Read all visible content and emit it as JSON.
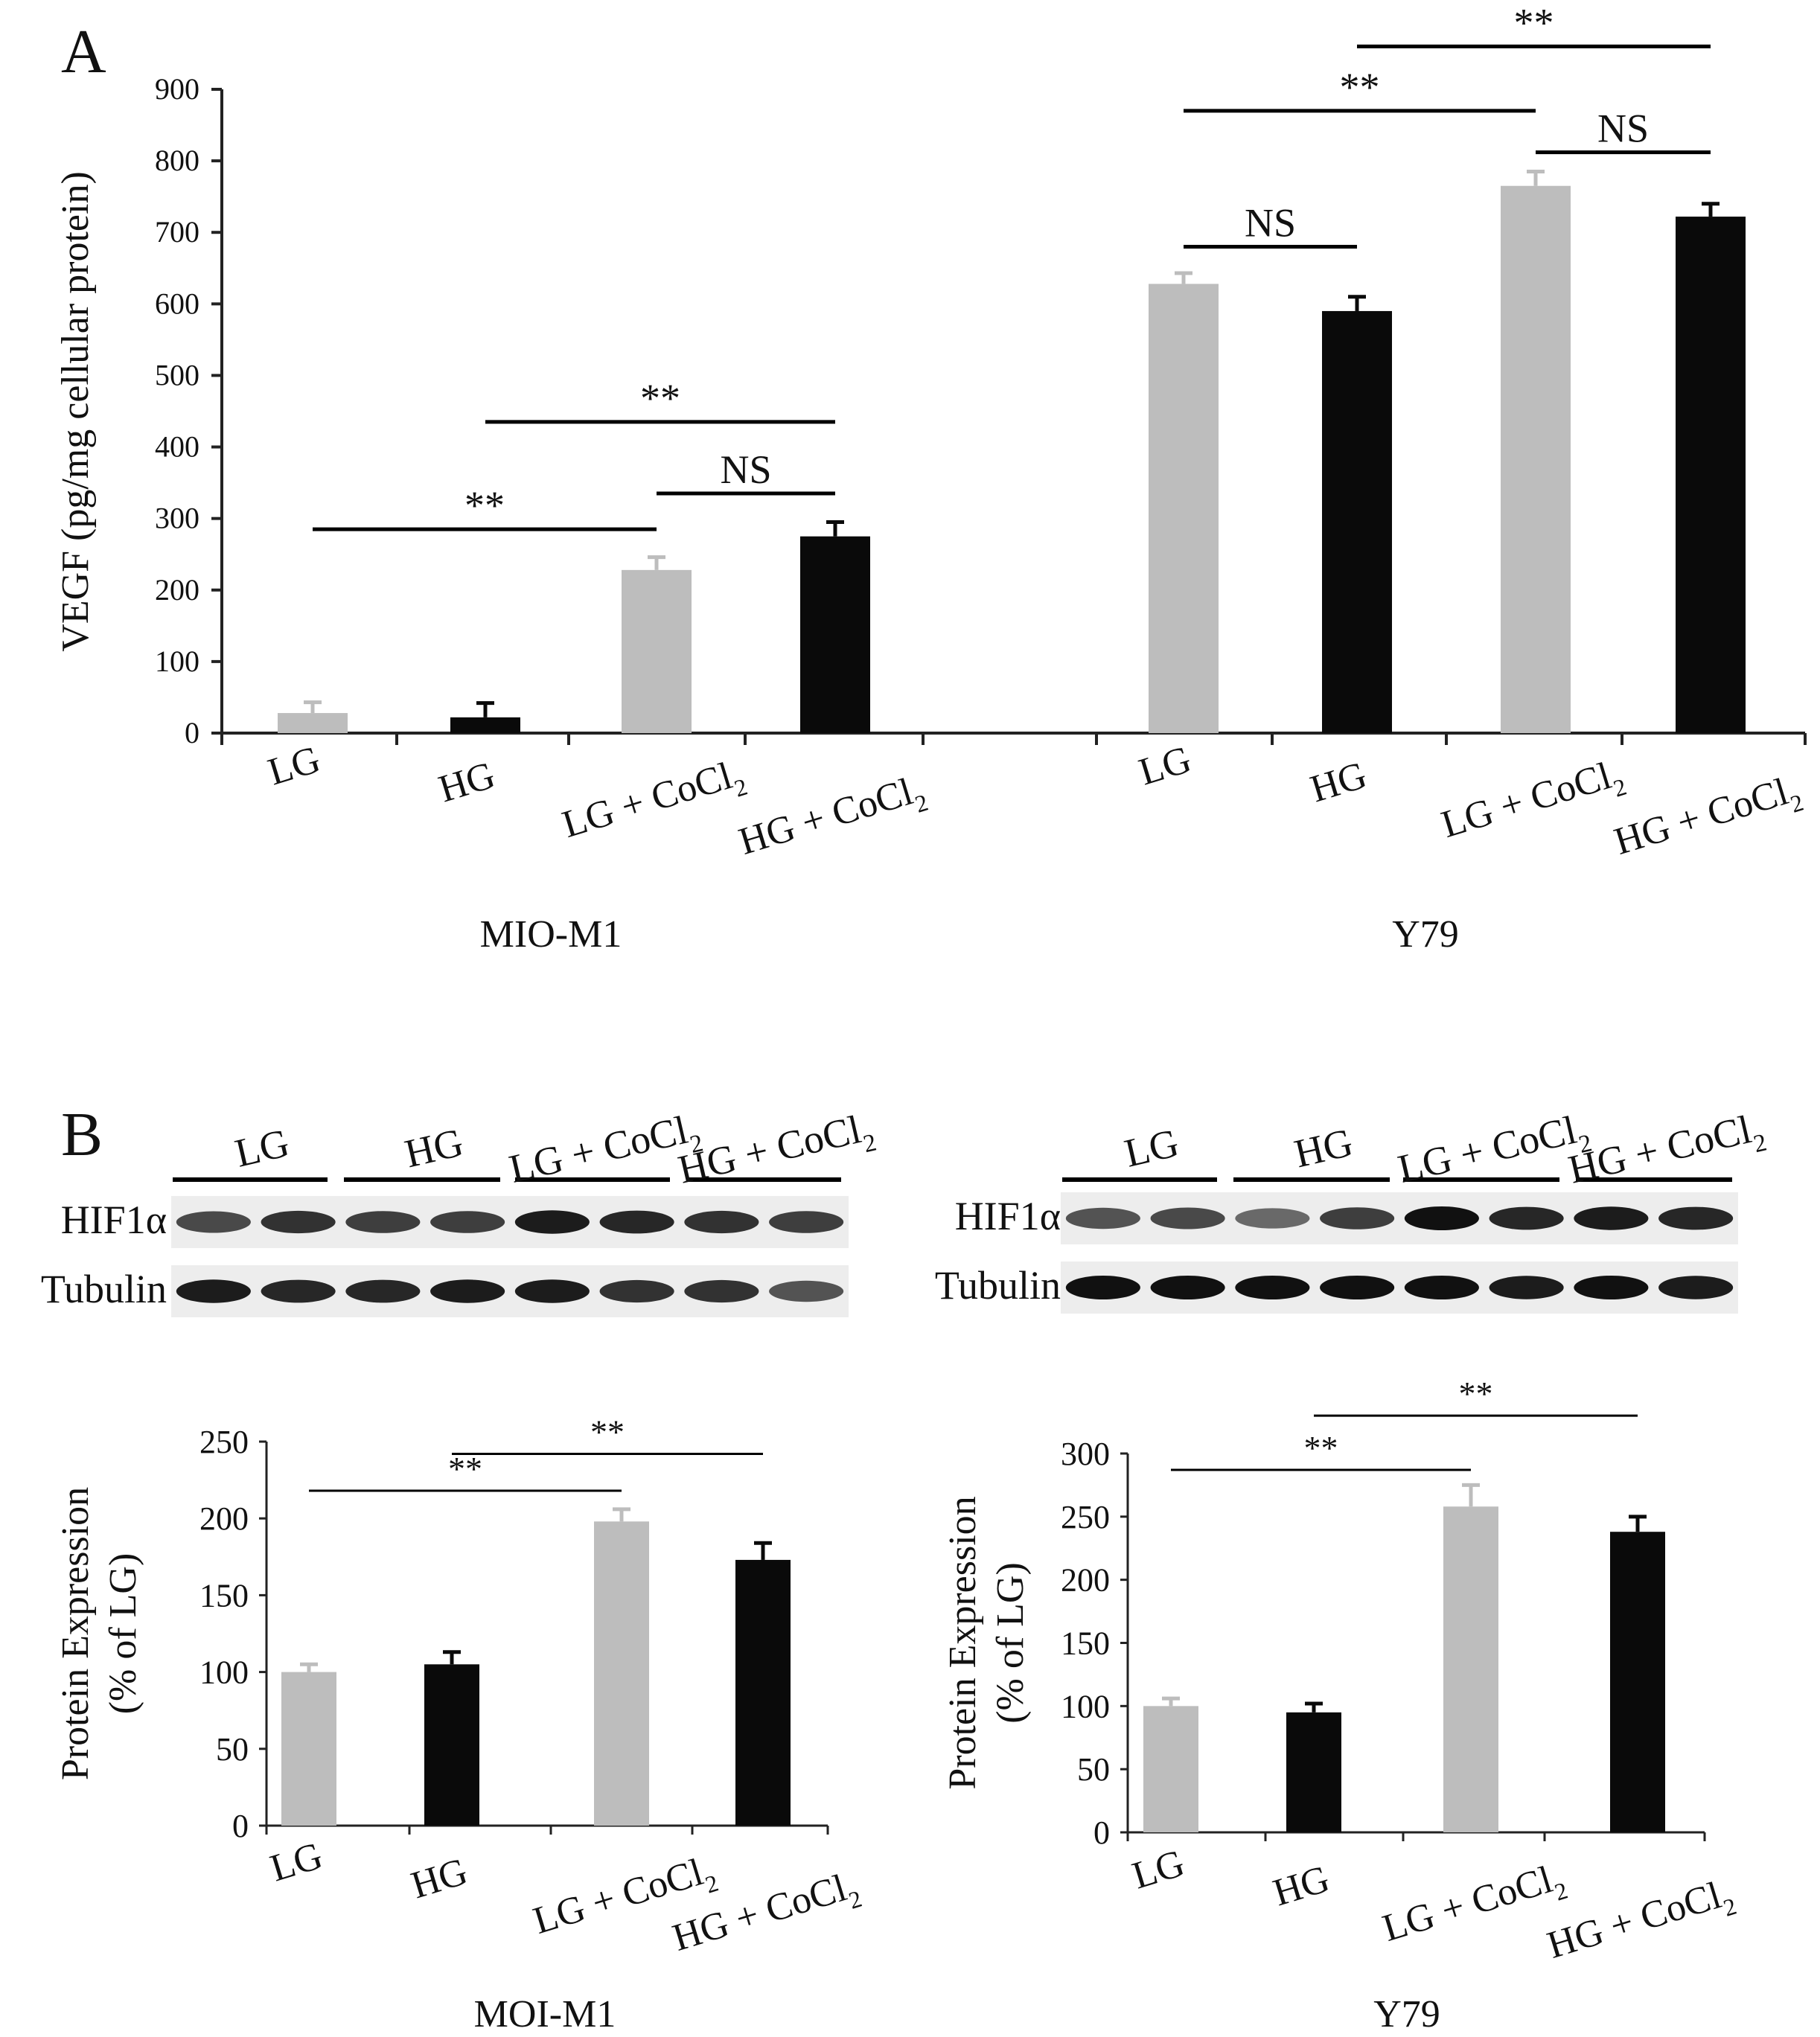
{
  "figure": {
    "panel_a_label": "A",
    "panel_b_label": "B",
    "cocl_base": "LG + CoCl",
    "cocl_base_hg": "HG + CoCl",
    "subscript_2": "2"
  },
  "colors": {
    "light": "#bdbdbd",
    "dark": "#0a0a0a",
    "axis": "#222222"
  },
  "chart_data": [
    {
      "id": "panel-a",
      "type": "bar",
      "title": "",
      "ylabel": "VEGF (pg/mg cellular protein)",
      "ylim": [
        0,
        900
      ],
      "yticks": [
        0,
        100,
        200,
        300,
        400,
        500,
        600,
        700,
        800,
        900
      ],
      "groups": [
        {
          "name": "MIO-M1",
          "categories": [
            "LG",
            "HG",
            "LG + CoCl2",
            "HG + CoCl2"
          ],
          "values": [
            28,
            22,
            228,
            275
          ],
          "errors": [
            15,
            20,
            18,
            20
          ],
          "shades": [
            "light",
            "dark",
            "light",
            "dark"
          ],
          "significance": [
            {
              "from": 0,
              "to": 2,
              "label": "**",
              "y": 285
            },
            {
              "from": 1,
              "to": 3,
              "label": "**",
              "y": 435
            },
            {
              "from": 2,
              "to": 3,
              "label": "NS",
              "y": 335
            }
          ]
        },
        {
          "name": "Y79",
          "categories": [
            "LG",
            "HG",
            "LG + CoCl2",
            "HG + CoCl2"
          ],
          "values": [
            628,
            590,
            765,
            722
          ],
          "errors": [
            15,
            20,
            20,
            18
          ],
          "shades": [
            "light",
            "dark",
            "light",
            "dark"
          ],
          "significance": [
            {
              "from": 0,
              "to": 1,
              "label": "NS",
              "y": 680
            },
            {
              "from": 0,
              "to": 2,
              "label": "**",
              "y": 870
            },
            {
              "from": 1,
              "to": 3,
              "label": "**",
              "y": 960
            },
            {
              "from": 2,
              "to": 3,
              "label": "NS",
              "y": 812
            }
          ]
        }
      ]
    },
    {
      "id": "panel-b-left",
      "type": "bar",
      "title": "MOI-M1",
      "ylabel_line1": "Protein Expression",
      "ylabel_line2": "(% of LG)",
      "ylim": [
        0,
        250
      ],
      "yticks": [
        0,
        50,
        100,
        150,
        200,
        250
      ],
      "categories": [
        "LG",
        "HG",
        "LG + CoCl2",
        "HG + CoCl2"
      ],
      "values": [
        100,
        105,
        198,
        173
      ],
      "errors": [
        5,
        8,
        8,
        11
      ],
      "shades": [
        "light",
        "dark",
        "light",
        "dark"
      ],
      "significance": [
        {
          "from": 0,
          "to": 2,
          "label": "**",
          "y": 218
        },
        {
          "from": 1,
          "to": 3,
          "label": "**",
          "y": 242
        }
      ]
    },
    {
      "id": "panel-b-right",
      "type": "bar",
      "title": "Y79",
      "ylabel_line1": "Protein Expression",
      "ylabel_line2": "(% of LG)",
      "ylim": [
        0,
        300
      ],
      "yticks": [
        0,
        50,
        100,
        150,
        200,
        250,
        300
      ],
      "categories": [
        "LG",
        "HG",
        "LG + CoCl2",
        "HG + CoCl2"
      ],
      "values": [
        100,
        95,
        258,
        238
      ],
      "errors": [
        6,
        7,
        17,
        12
      ],
      "shades": [
        "light",
        "dark",
        "light",
        "dark"
      ],
      "significance": [
        {
          "from": 0,
          "to": 2,
          "label": "**",
          "y": 287
        },
        {
          "from": 1,
          "to": 3,
          "label": "**",
          "y": 330
        }
      ]
    }
  ],
  "blots": [
    {
      "id": "blot-left",
      "lane_groups": [
        "LG",
        "HG",
        "LG + CoCl2",
        "HG + CoCl2"
      ],
      "rows": [
        {
          "label": "HIF1α",
          "intensity": [
            0.75,
            0.85,
            0.8,
            0.8,
            0.95,
            0.9,
            0.85,
            0.8
          ]
        },
        {
          "label": "Tubulin",
          "intensity": [
            0.95,
            0.9,
            0.9,
            0.95,
            0.95,
            0.85,
            0.85,
            0.7
          ]
        }
      ]
    },
    {
      "id": "blot-right",
      "lane_groups": [
        "LG",
        "HG",
        "LG + CoCl2",
        "HG + CoCl2"
      ],
      "rows": [
        {
          "label": "HIF1α",
          "intensity": [
            0.7,
            0.75,
            0.6,
            0.8,
            1.0,
            0.9,
            0.95,
            0.9
          ]
        },
        {
          "label": "Tubulin",
          "intensity": [
            1.0,
            1.0,
            1.0,
            1.0,
            1.0,
            0.95,
            1.0,
            0.95
          ]
        }
      ]
    }
  ]
}
